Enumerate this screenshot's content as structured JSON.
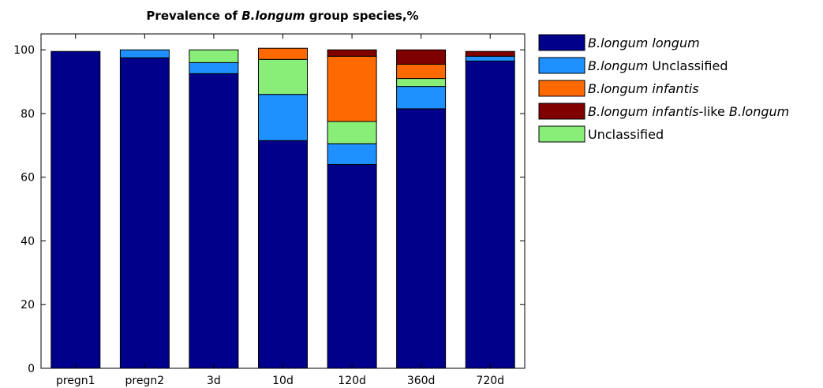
{
  "chart_data": {
    "type": "bar",
    "stacked": true,
    "title": [
      "Prevalence of ",
      "B.longum",
      " group species,%"
    ],
    "xlabel": "",
    "ylabel": "",
    "ylim": [
      0,
      105
    ],
    "yticks": [
      0,
      20,
      40,
      60,
      80,
      100
    ],
    "grid": false,
    "legend_position": "outside-right",
    "categories": [
      "pregn1",
      "pregn2",
      "3d",
      "10d",
      "120d",
      "360d",
      "720d"
    ],
    "series": [
      {
        "name": [
          "B.longum longum"
        ],
        "name_italic": [
          true
        ],
        "color": "#00008B",
        "values": [
          99.5,
          97.5,
          92.5,
          71.5,
          64.0,
          81.5,
          96.5
        ]
      },
      {
        "name": [
          "B.longum",
          " Unclassified"
        ],
        "name_italic": [
          true,
          false
        ],
        "color": "#1E90FF",
        "values": [
          0,
          2.5,
          3.5,
          14.5,
          6.5,
          7.0,
          1.5
        ]
      },
      {
        "name": [
          "Unclassified"
        ],
        "name_italic": [
          false
        ],
        "color": "#88EE77",
        "values": [
          0,
          0,
          4.0,
          11.0,
          7.0,
          2.5,
          0
        ]
      },
      {
        "name": [
          "B.longum infantis"
        ],
        "name_italic": [
          true
        ],
        "color": "#FF6A00",
        "values": [
          0,
          0,
          0,
          3.5,
          20.5,
          4.5,
          0
        ]
      },
      {
        "name": [
          "B.longum infantis",
          "-like ",
          "B.longum"
        ],
        "name_italic": [
          true,
          false,
          true
        ],
        "color": "#800000",
        "values": [
          0,
          0,
          0,
          0,
          2.0,
          4.5,
          1.5
        ]
      }
    ],
    "legend_order": [
      0,
      1,
      3,
      4,
      2
    ]
  }
}
